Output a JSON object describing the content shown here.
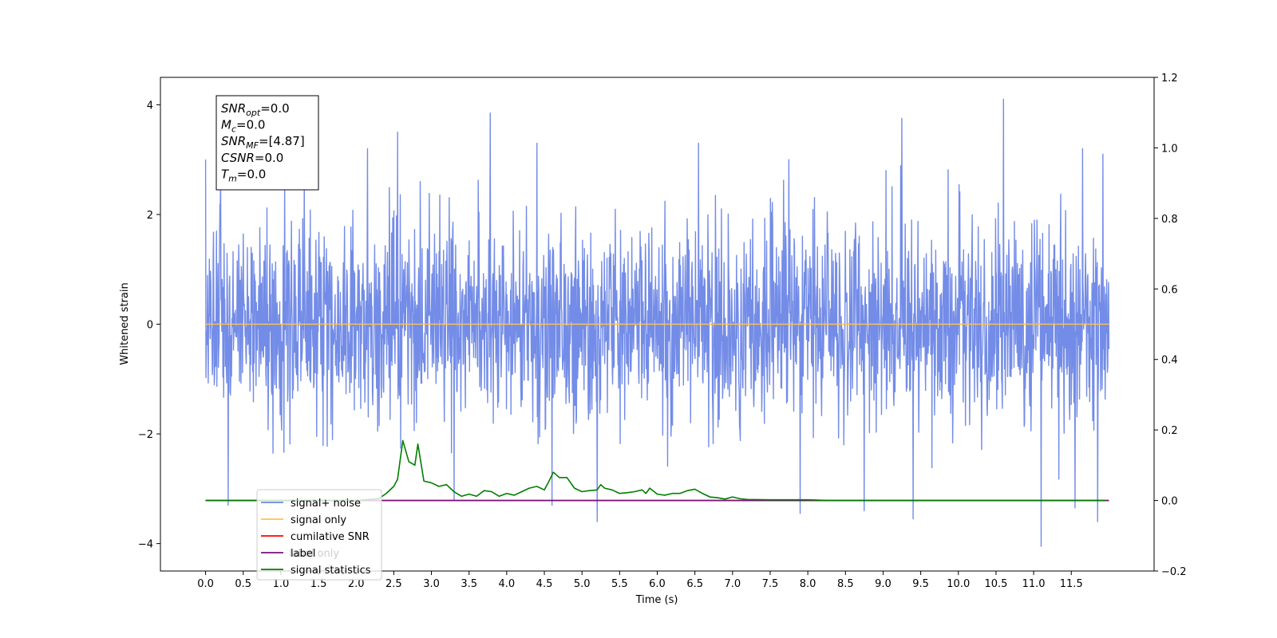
{
  "chart_data": {
    "type": "line",
    "title": "",
    "xlabel": "Time (s)",
    "ylabel": "Whitened strain",
    "y2label": "",
    "xlim": [
      -0.6,
      12.6
    ],
    "ylim": [
      -4.5,
      4.5
    ],
    "y2lim": [
      -0.2,
      1.2
    ],
    "xticks": [
      0.0,
      0.5,
      1.0,
      1.5,
      2.0,
      2.5,
      3.0,
      3.5,
      4.0,
      4.5,
      5.0,
      5.5,
      6.0,
      6.5,
      7.0,
      7.5,
      8.0,
      8.5,
      9.0,
      9.5,
      10.0,
      10.5,
      11.0,
      11.5
    ],
    "xtick_labels": [
      "0.0",
      "0.5",
      "1.0",
      "1.5",
      "2.0",
      "2.5",
      "3.0",
      "3.5",
      "4.0",
      "4.5",
      "5.0",
      "5.5",
      "6.0",
      "6.5",
      "7.0",
      "7.5",
      "8.0",
      "8.5",
      "9.0",
      "9.5",
      "10.0",
      "10.5",
      "11.0",
      "11.5"
    ],
    "yticks": [
      -4,
      -2,
      0,
      2,
      4
    ],
    "ytick_labels": [
      "−4",
      "−2",
      "0",
      "2",
      "4"
    ],
    "y2ticks": [
      -0.2,
      0.0,
      0.2,
      0.4,
      0.6,
      0.8,
      1.0,
      1.2
    ],
    "y2tick_labels": [
      "−0.2",
      "0.0",
      "0.2",
      "0.4",
      "0.6",
      "0.8",
      "1.0",
      "1.2"
    ],
    "grid": false,
    "legend_position": "lower-left",
    "series": [
      {
        "name": "signal+ noise",
        "color": "#6b86e6",
        "axis": "left",
        "kind": "noise",
        "x_range": [
          0.0,
          12.0
        ],
        "approx_std": 1.0,
        "approx_min": -4.1,
        "approx_max": 4.1,
        "peaks": [
          [
            0.0,
            3.0
          ],
          [
            0.2,
            2.7
          ],
          [
            1.05,
            2.6
          ],
          [
            2.15,
            3.2
          ],
          [
            2.55,
            3.5
          ],
          [
            2.85,
            2.6
          ],
          [
            3.78,
            3.85
          ],
          [
            4.4,
            3.3
          ],
          [
            5.2,
            3.2
          ],
          [
            6.55,
            3.3
          ],
          [
            7.75,
            3.0
          ],
          [
            9.25,
            3.75
          ],
          [
            10.6,
            4.1
          ],
          [
            11.65,
            3.2
          ],
          [
            11.92,
            3.1
          ]
        ],
        "troughs": [
          [
            0.3,
            -3.3
          ],
          [
            3.3,
            -3.2
          ],
          [
            4.6,
            -3.3
          ],
          [
            5.2,
            -3.6
          ],
          [
            7.9,
            -3.45
          ],
          [
            8.75,
            -3.4
          ],
          [
            9.4,
            -3.55
          ],
          [
            11.1,
            -4.05
          ],
          [
            11.55,
            -3.35
          ],
          [
            11.85,
            -3.6
          ]
        ]
      },
      {
        "name": "signal only",
        "color": "#ffc04d",
        "axis": "left",
        "x": [
          0.0,
          12.0
        ],
        "y": [
          0.0,
          0.0
        ]
      },
      {
        "name": "cumilative SNR",
        "color": "#ff0000",
        "axis": "right",
        "x": [
          0.0,
          12.0
        ],
        "y": [
          0.0,
          0.0
        ]
      },
      {
        "name": "label",
        "color": "#7a0f7a",
        "axis": "right",
        "x": [
          0.0,
          12.0
        ],
        "y": [
          0.0,
          0.0
        ]
      },
      {
        "name": "signal statistics",
        "color": "#007f00",
        "axis": "right",
        "x": [
          0.0,
          1.0,
          2.0,
          2.3,
          2.4,
          2.5,
          2.55,
          2.62,
          2.7,
          2.78,
          2.82,
          2.9,
          3.0,
          3.1,
          3.2,
          3.3,
          3.4,
          3.5,
          3.6,
          3.7,
          3.8,
          3.9,
          4.0,
          4.1,
          4.2,
          4.3,
          4.4,
          4.5,
          4.55,
          4.62,
          4.7,
          4.8,
          4.9,
          5.0,
          5.1,
          5.2,
          5.25,
          5.3,
          5.4,
          5.5,
          5.6,
          5.7,
          5.8,
          5.85,
          5.9,
          6.0,
          6.1,
          6.2,
          6.3,
          6.4,
          6.5,
          6.6,
          6.7,
          6.8,
          6.9,
          7.0,
          7.1,
          7.2,
          7.5,
          8.0,
          8.3,
          9.0,
          10.0,
          11.0,
          11.95
        ],
        "y": [
          0.0,
          0.0,
          0.0,
          0.005,
          0.02,
          0.04,
          0.06,
          0.17,
          0.11,
          0.1,
          0.16,
          0.055,
          0.05,
          0.04,
          0.045,
          0.025,
          0.012,
          0.018,
          0.012,
          0.028,
          0.025,
          0.012,
          0.02,
          0.015,
          0.025,
          0.035,
          0.04,
          0.03,
          0.05,
          0.08,
          0.065,
          0.065,
          0.035,
          0.025,
          0.028,
          0.03,
          0.045,
          0.035,
          0.03,
          0.02,
          0.022,
          0.025,
          0.03,
          0.02,
          0.035,
          0.018,
          0.015,
          0.02,
          0.02,
          0.028,
          0.032,
          0.02,
          0.01,
          0.008,
          0.004,
          0.01,
          0.005,
          0.003,
          0.002,
          0.002,
          0.0,
          0.0,
          0.0,
          0.0,
          0.0
        ]
      }
    ],
    "legend": [
      {
        "label": "signal+ noise",
        "color": "#6b86e6"
      },
      {
        "label": "signal only",
        "color": "#ffc04d"
      },
      {
        "label": "cumilative SNR",
        "color": "#ff0000"
      },
      {
        "label": "label",
        "color": "#7a0f7a"
      },
      {
        "label": "signal statistics",
        "color": "#007f00"
      }
    ],
    "hidden_text": "label only",
    "annotation": [
      {
        "var": "SNR",
        "sub": "opt",
        "value": "=0.0"
      },
      {
        "var": "M",
        "sub": "c",
        "value": "=0.0"
      },
      {
        "var": "SNR",
        "sub": "MF",
        "value": "=[4.87]"
      },
      {
        "var": "CSNR",
        "sub": "",
        "value": "=0.0"
      },
      {
        "var": "T",
        "sub": "m",
        "value": "=0.0"
      }
    ]
  }
}
